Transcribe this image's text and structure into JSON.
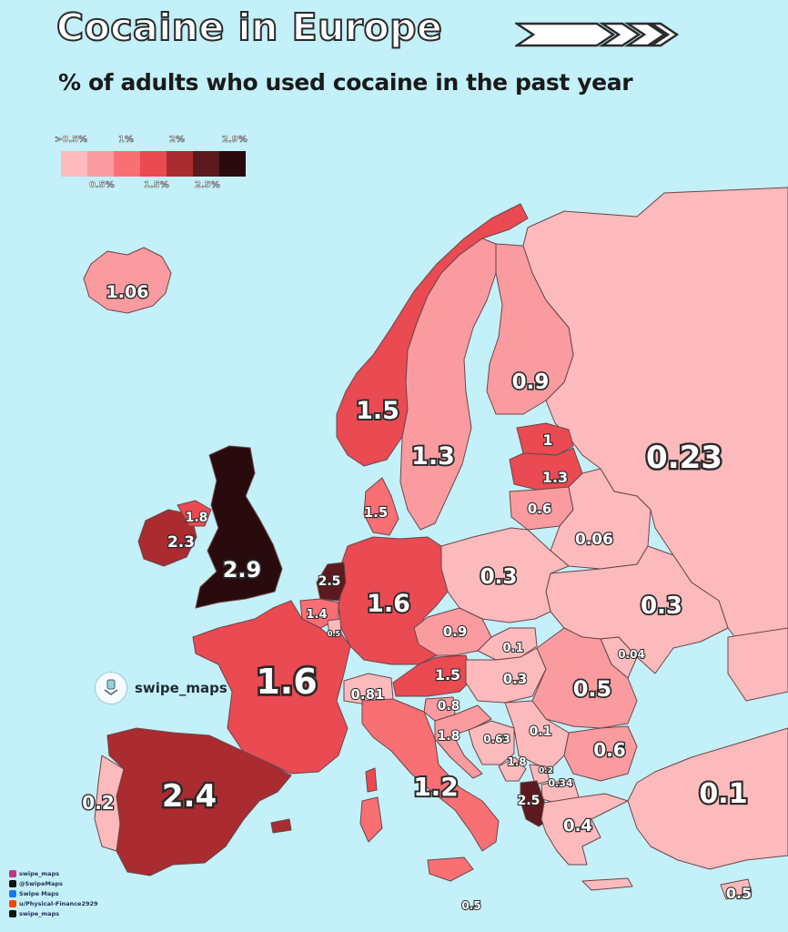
{
  "header": {
    "title": "Cocaine in Europe",
    "subtitle": "% of adults who used cocaine in the past year"
  },
  "legend": {
    "top_labels": [
      ">0.5%",
      "1%",
      "2%",
      "2.9%"
    ],
    "bottom_labels": [
      "0.5%",
      "1.5%",
      "2.5%"
    ],
    "colors": [
      "#fcbabc",
      "#fa9ba0",
      "#f86f74",
      "#ea4a52",
      "#aa2b30",
      "#5c1a1e",
      "#2a0b0d"
    ]
  },
  "colors": {
    "sea": "#c3f0f9",
    "border": "#6b4648",
    "label_outline": "#2a2a2a"
  },
  "map_labels": [
    {
      "id": "iceland",
      "text": "1.06"
    },
    {
      "id": "norway",
      "text": "1.5"
    },
    {
      "id": "sweden",
      "text": "1.3"
    },
    {
      "id": "finland",
      "text": "0.9"
    },
    {
      "id": "russia",
      "text": "0.23"
    },
    {
      "id": "estonia",
      "text": "1"
    },
    {
      "id": "latvia",
      "text": "1.3"
    },
    {
      "id": "lithuania",
      "text": "0.6"
    },
    {
      "id": "belarus",
      "text": "0.06"
    },
    {
      "id": "northern-ireland",
      "text": "1.8"
    },
    {
      "id": "ireland",
      "text": "2.3"
    },
    {
      "id": "uk",
      "text": "2.9"
    },
    {
      "id": "denmark",
      "text": "1.5"
    },
    {
      "id": "netherlands",
      "text": "2.5"
    },
    {
      "id": "belgium",
      "text": "1.4"
    },
    {
      "id": "luxembourg",
      "text": "0.5"
    },
    {
      "id": "germany",
      "text": "1.6"
    },
    {
      "id": "poland",
      "text": "0.3"
    },
    {
      "id": "ukraine",
      "text": "0.3"
    },
    {
      "id": "czechia",
      "text": "0.9"
    },
    {
      "id": "slovakia",
      "text": "0.1"
    },
    {
      "id": "moldova",
      "text": "0.04"
    },
    {
      "id": "france",
      "text": "1.6"
    },
    {
      "id": "switzerland",
      "text": "0.81"
    },
    {
      "id": "austria",
      "text": "1.5"
    },
    {
      "id": "hungary",
      "text": "0.3"
    },
    {
      "id": "romania",
      "text": "0.5"
    },
    {
      "id": "slovenia",
      "text": "0.8"
    },
    {
      "id": "croatia",
      "text": "1.8"
    },
    {
      "id": "bosnia",
      "text": "0.63"
    },
    {
      "id": "serbia",
      "text": "0.1"
    },
    {
      "id": "bulgaria",
      "text": "0.6"
    },
    {
      "id": "montenegro",
      "text": "1.8"
    },
    {
      "id": "kosovo",
      "text": "0.2"
    },
    {
      "id": "north-macedonia",
      "text": "0.34"
    },
    {
      "id": "albania",
      "text": "2.5"
    },
    {
      "id": "greece",
      "text": "0.4"
    },
    {
      "id": "turkey",
      "text": "0.1"
    },
    {
      "id": "portugal",
      "text": "0.2"
    },
    {
      "id": "spain",
      "text": "2.4"
    },
    {
      "id": "italy",
      "text": "1.2"
    },
    {
      "id": "malta",
      "text": "0.5"
    },
    {
      "id": "cyprus",
      "text": "0.5"
    }
  ],
  "watermark": {
    "handle": "swipe_maps",
    "icon": "swipe-maps-logo-icon"
  },
  "credits": [
    {
      "icon": "instagram-icon",
      "text": "swipe_maps",
      "color": "#c13584"
    },
    {
      "icon": "x-icon",
      "text": "@SwipeMaps",
      "color": "#111111"
    },
    {
      "icon": "facebook-icon",
      "text": "Swipe Maps",
      "color": "#1877f2"
    },
    {
      "icon": "reddit-icon",
      "text": "u/Physical-Finance2929",
      "color": "#ff4500"
    },
    {
      "icon": "threads-icon",
      "text": "swipe_maps",
      "color": "#111111"
    }
  ]
}
